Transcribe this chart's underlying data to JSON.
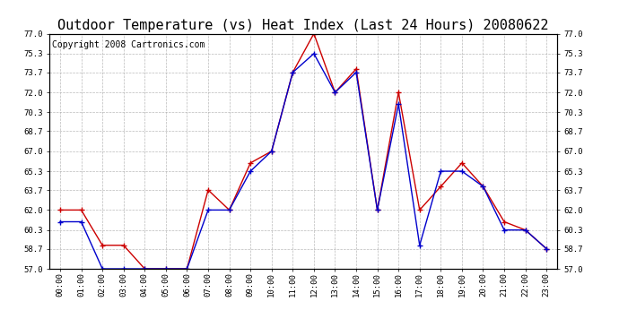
{
  "title": "Outdoor Temperature (vs) Heat Index (Last 24 Hours) 20080622",
  "copyright": "Copyright 2008 Cartronics.com",
  "hours": [
    "00:00",
    "01:00",
    "02:00",
    "03:00",
    "04:00",
    "05:00",
    "06:00",
    "07:00",
    "08:00",
    "09:00",
    "10:00",
    "11:00",
    "12:00",
    "13:00",
    "14:00",
    "15:00",
    "16:00",
    "17:00",
    "18:00",
    "19:00",
    "20:00",
    "21:00",
    "22:00",
    "23:00"
  ],
  "temp": [
    61.0,
    61.0,
    57.0,
    57.0,
    57.0,
    57.0,
    57.0,
    62.0,
    62.0,
    65.3,
    67.0,
    73.7,
    75.3,
    72.0,
    73.7,
    62.0,
    71.0,
    59.0,
    65.3,
    65.3,
    64.0,
    60.3,
    60.3,
    58.7
  ],
  "heat_index": [
    62.0,
    62.0,
    59.0,
    59.0,
    57.0,
    57.0,
    57.0,
    63.7,
    62.0,
    66.0,
    67.0,
    73.7,
    77.0,
    72.0,
    74.0,
    62.0,
    72.0,
    62.0,
    64.0,
    66.0,
    64.0,
    61.0,
    60.3,
    58.7
  ],
  "temp_color": "#0000cc",
  "heat_color": "#cc0000",
  "ylim_min": 57.0,
  "ylim_max": 77.0,
  "yticks": [
    57.0,
    58.7,
    60.3,
    62.0,
    63.7,
    65.3,
    67.0,
    68.7,
    70.3,
    72.0,
    73.7,
    75.3,
    77.0
  ],
  "bg_color": "#ffffff",
  "grid_color": "#aaaaaa",
  "title_fontsize": 11,
  "copyright_fontsize": 7
}
